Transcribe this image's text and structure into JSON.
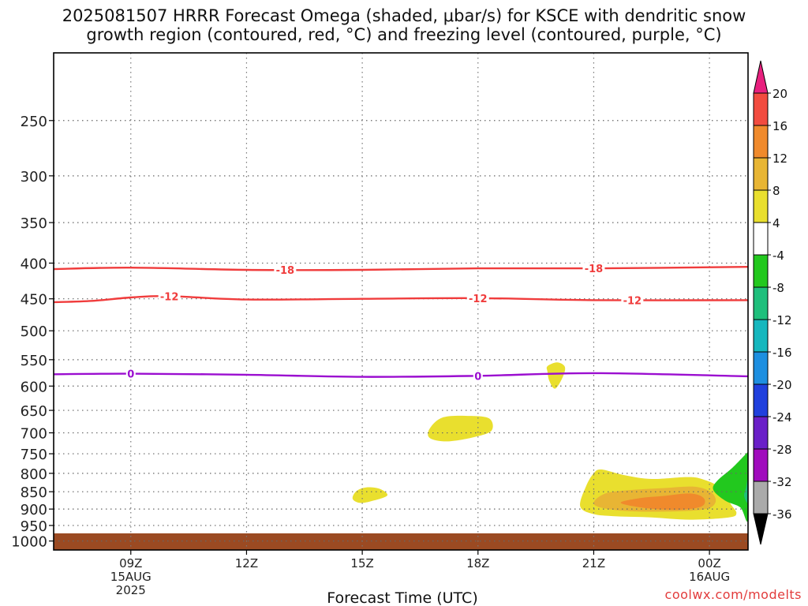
{
  "title_line1": "2025081507 HRRR Forecast Omega (shaded, μbar/s) for KSCE with dendritic snow",
  "title_line2": "growth region (contoured, red, °C) and freezing level (contoured, purple, °C)",
  "watermark": "coolwx.com/modelts",
  "chart_data": {
    "type": "heatmap",
    "xlabel": "Forecast Time (UTC)",
    "ylabel": "",
    "x_ticks": [
      {
        "hour": 9,
        "label": "09Z",
        "sub1": "15AUG",
        "sub2": "2025"
      },
      {
        "hour": 12,
        "label": "12Z",
        "sub1": "",
        "sub2": ""
      },
      {
        "hour": 15,
        "label": "15Z",
        "sub1": "",
        "sub2": ""
      },
      {
        "hour": 18,
        "label": "18Z",
        "sub1": "",
        "sub2": ""
      },
      {
        "hour": 21,
        "label": "21Z",
        "sub1": "",
        "sub2": ""
      },
      {
        "hour": 24,
        "label": "00Z",
        "sub1": "16AUG",
        "sub2": ""
      }
    ],
    "x_range_hours": [
      7,
      25
    ],
    "y_ticks": [
      250,
      300,
      350,
      400,
      450,
      500,
      550,
      600,
      650,
      700,
      750,
      800,
      850,
      900,
      950,
      1000
    ],
    "y_range_hPa": [
      200,
      1030
    ],
    "ground_level_hPa": 975,
    "grid": true,
    "colorbar": {
      "labels": [
        "20",
        "16",
        "12",
        "8",
        "4",
        "-4",
        "-8",
        "-12",
        "-16",
        "-20",
        "-24",
        "-28",
        "-32",
        "-36"
      ],
      "colors": [
        "#e8207e",
        "#f24b3f",
        "#f08a2c",
        "#e8b534",
        "#e9df2e",
        "#ffffff",
        "#22c81e",
        "#1fbf7c",
        "#16b7be",
        "#1e8fe0",
        "#2040dd",
        "#6a1fc8",
        "#a00cbd",
        "#aaaaaa",
        "#000000"
      ]
    },
    "contours": [
      {
        "group": "dendritic",
        "color": "#f03c3c",
        "label": "-18",
        "points": [
          [
            7,
            408
          ],
          [
            9,
            406
          ],
          [
            12,
            409
          ],
          [
            15,
            409
          ],
          [
            18,
            407
          ],
          [
            21,
            407
          ],
          [
            25,
            405
          ]
        ],
        "label_hours": [
          13,
          21
        ]
      },
      {
        "group": "dendritic",
        "color": "#f03c3c",
        "label": "-12",
        "points": [
          [
            7,
            455
          ],
          [
            8,
            453
          ],
          [
            9,
            448
          ],
          [
            10,
            446
          ],
          [
            12,
            451
          ],
          [
            15,
            450
          ],
          [
            18,
            449
          ],
          [
            21,
            452
          ],
          [
            25,
            452
          ]
        ],
        "label_hours": [
          10,
          18,
          22
        ]
      },
      {
        "group": "freezing",
        "color": "#9b0ed0",
        "label": "0",
        "points": [
          [
            7,
            577
          ],
          [
            9,
            576
          ],
          [
            12,
            578
          ],
          [
            15,
            582
          ],
          [
            18,
            580
          ],
          [
            21,
            575
          ],
          [
            25,
            581
          ]
        ],
        "label_hours": [
          9,
          18
        ]
      }
    ],
    "omega_regions": [
      {
        "value_bin": "4-8",
        "color": "#e9df2e",
        "points": [
          [
            19.8,
            562
          ],
          [
            20.05,
            555
          ],
          [
            20.25,
            563
          ],
          [
            20.2,
            582
          ],
          [
            20.0,
            605
          ],
          [
            19.85,
            590
          ],
          [
            19.8,
            572
          ]
        ]
      },
      {
        "value_bin": "4-8",
        "color": "#e9df2e",
        "points": [
          [
            16.75,
            690
          ],
          [
            17.1,
            665
          ],
          [
            17.8,
            662
          ],
          [
            18.3,
            668
          ],
          [
            18.35,
            695
          ],
          [
            17.9,
            710
          ],
          [
            17.2,
            720
          ],
          [
            16.75,
            712
          ]
        ]
      },
      {
        "value_bin": "4-8",
        "color": "#e9df2e",
        "points": [
          [
            14.75,
            870
          ],
          [
            14.85,
            848
          ],
          [
            15.1,
            838
          ],
          [
            15.45,
            842
          ],
          [
            15.65,
            860
          ],
          [
            15.3,
            875
          ],
          [
            14.95,
            882
          ]
        ]
      },
      {
        "value_bin": "4-8",
        "color": "#e9df2e",
        "points": [
          [
            20.65,
            892
          ],
          [
            20.8,
            835
          ],
          [
            21.0,
            800
          ],
          [
            21.2,
            790
          ],
          [
            21.8,
            805
          ],
          [
            22.5,
            815
          ],
          [
            23.4,
            810
          ],
          [
            23.8,
            815
          ],
          [
            24.3,
            840
          ],
          [
            24.55,
            885
          ],
          [
            24.7,
            912
          ],
          [
            24.5,
            925
          ],
          [
            23.5,
            932
          ],
          [
            22.5,
            925
          ],
          [
            21.6,
            922
          ],
          [
            21.0,
            915
          ]
        ]
      },
      {
        "value_bin": "8-12",
        "color": "#e8b534",
        "points": [
          [
            21.0,
            885
          ],
          [
            21.3,
            855
          ],
          [
            22.0,
            845
          ],
          [
            22.8,
            840
          ],
          [
            23.6,
            836
          ],
          [
            24.05,
            852
          ],
          [
            24.15,
            882
          ],
          [
            23.8,
            902
          ],
          [
            22.5,
            908
          ],
          [
            21.5,
            902
          ]
        ]
      },
      {
        "value_bin": "12-16",
        "color": "#f08a2c",
        "points": [
          [
            21.7,
            882
          ],
          [
            22.2,
            868
          ],
          [
            22.8,
            862
          ],
          [
            23.5,
            855
          ],
          [
            23.85,
            868
          ],
          [
            23.8,
            892
          ],
          [
            23.2,
            902
          ],
          [
            22.4,
            898
          ]
        ]
      },
      {
        "value_bin": "-4--8",
        "color": "#22c81e",
        "points": [
          [
            25.2,
            745
          ],
          [
            24.6,
            785
          ],
          [
            24.2,
            820
          ],
          [
            24.1,
            845
          ],
          [
            24.4,
            875
          ],
          [
            24.8,
            895
          ],
          [
            25.2,
            930
          ],
          [
            25.2,
            745
          ]
        ]
      },
      {
        "value_bin": "-8--12",
        "color": "#1fbf7c",
        "points": [
          [
            25.2,
            815
          ],
          [
            24.95,
            838
          ],
          [
            24.9,
            862
          ],
          [
            25.2,
            880
          ]
        ]
      }
    ]
  }
}
